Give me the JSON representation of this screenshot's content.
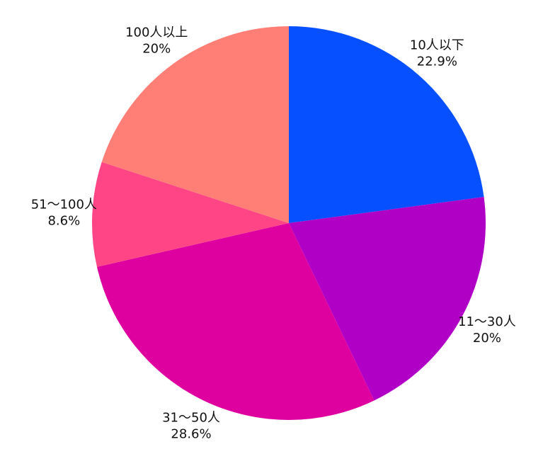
{
  "chart_data": {
    "type": "pie",
    "categories": [
      "10人以下",
      "11～30人",
      "31～50人",
      "51～100人",
      "100人以上"
    ],
    "values": [
      22.9,
      20,
      28.6,
      8.6,
      20
    ],
    "value_labels": [
      "22.9%",
      "20%",
      "28.6%",
      "8.6%",
      "20%"
    ],
    "colors": [
      "#0650ff",
      "#b000c6",
      "#de009f",
      "#ff4585",
      "#ff7f77"
    ]
  }
}
